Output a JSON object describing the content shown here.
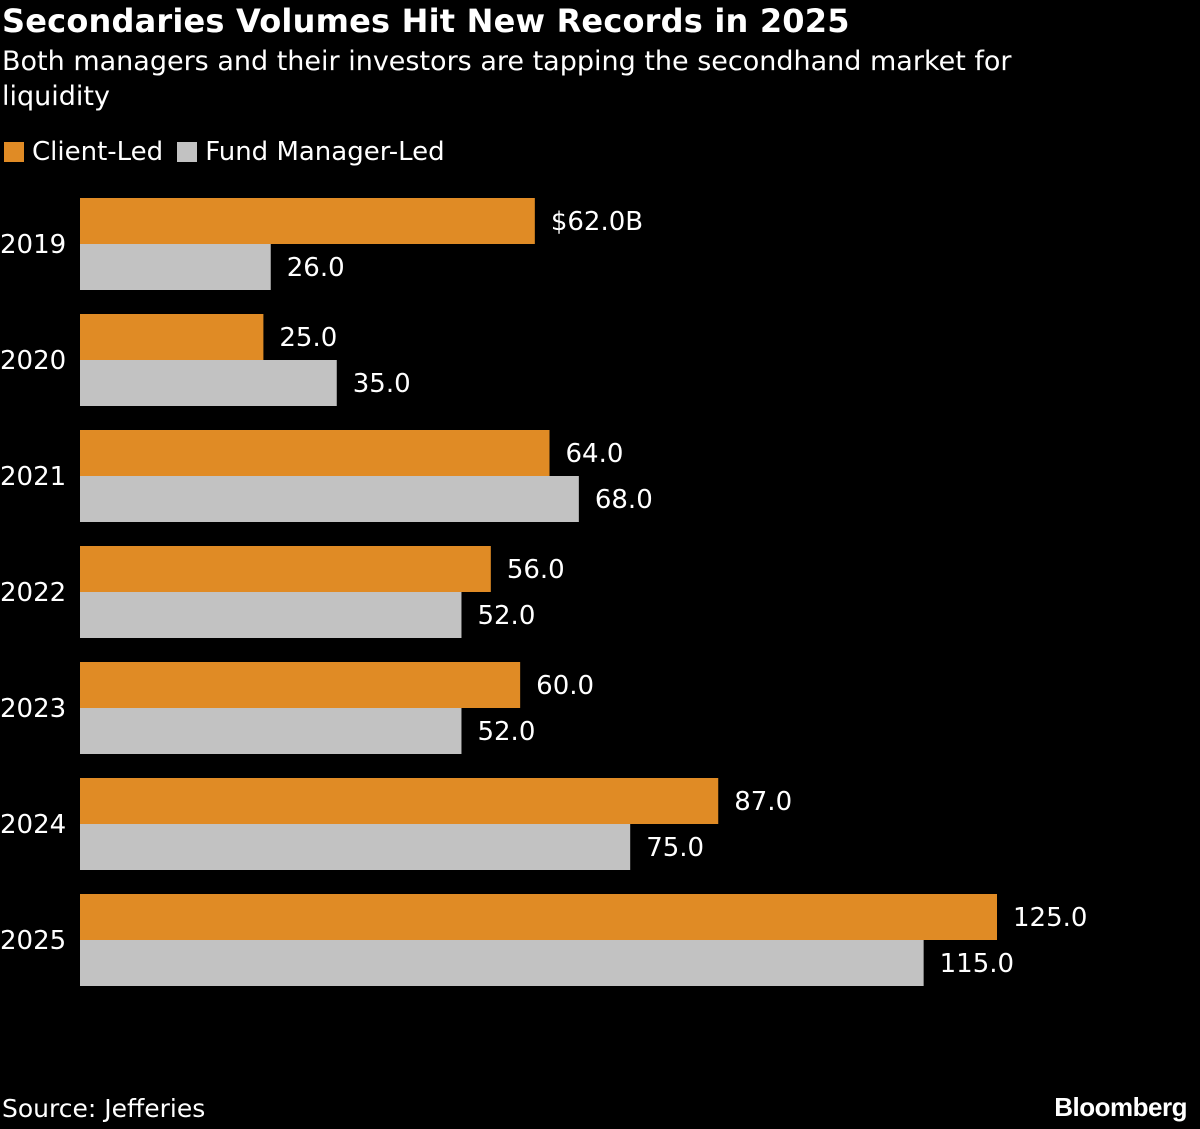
{
  "title": "Secondaries Volumes Hit New Records in 2025",
  "subtitle": "Both managers and their investors are tapping the secondhand market for liquidity",
  "source": "Source: Jefferies",
  "logo": "Bloomberg",
  "chart_data": {
    "type": "bar",
    "orientation": "horizontal",
    "categories": [
      "2019",
      "2020",
      "2021",
      "2022",
      "2023",
      "2024",
      "2025"
    ],
    "series": [
      {
        "name": "Client-Led",
        "color": "#E08B25",
        "values": [
          62.0,
          25.0,
          64.0,
          56.0,
          60.0,
          87.0,
          125.0
        ],
        "labels": [
          "$62.0B",
          "25.0",
          "64.0",
          "56.0",
          "60.0",
          "87.0",
          "125.0"
        ]
      },
      {
        "name": "Fund Manager-Led",
        "color": "#C2C2C2",
        "values": [
          26.0,
          35.0,
          68.0,
          52.0,
          52.0,
          75.0,
          115.0
        ],
        "labels": [
          "26.0",
          "35.0",
          "68.0",
          "52.0",
          "52.0",
          "75.0",
          "115.0"
        ]
      }
    ],
    "unit": "$B",
    "xlim": [
      0,
      125
    ],
    "grid": false,
    "legend": "top-left"
  }
}
